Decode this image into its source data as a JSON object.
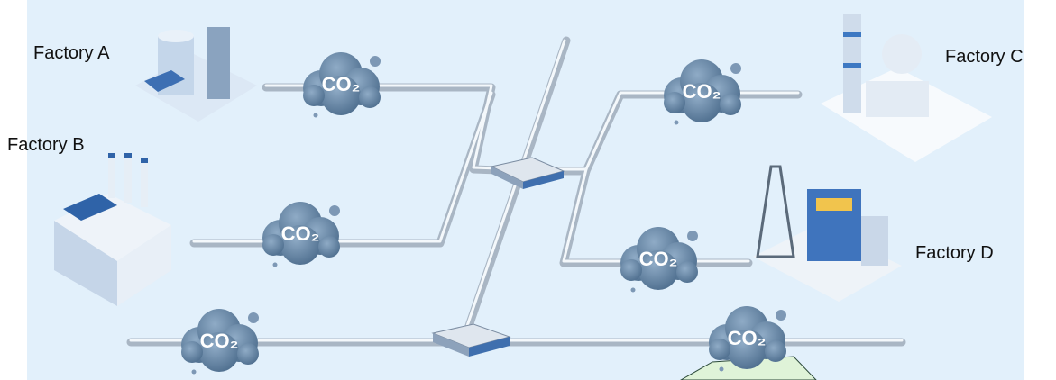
{
  "factories": [
    {
      "label": "Factory A"
    },
    {
      "label": "Factory B"
    },
    {
      "label": "Factory C"
    },
    {
      "label": "Factory D"
    }
  ],
  "clouds": [
    {
      "label": "CO₂"
    },
    {
      "label": "CO₂"
    },
    {
      "label": "CO₂"
    },
    {
      "label": "CO₂"
    },
    {
      "label": "CO₂"
    },
    {
      "label": "CO₂"
    }
  ]
}
